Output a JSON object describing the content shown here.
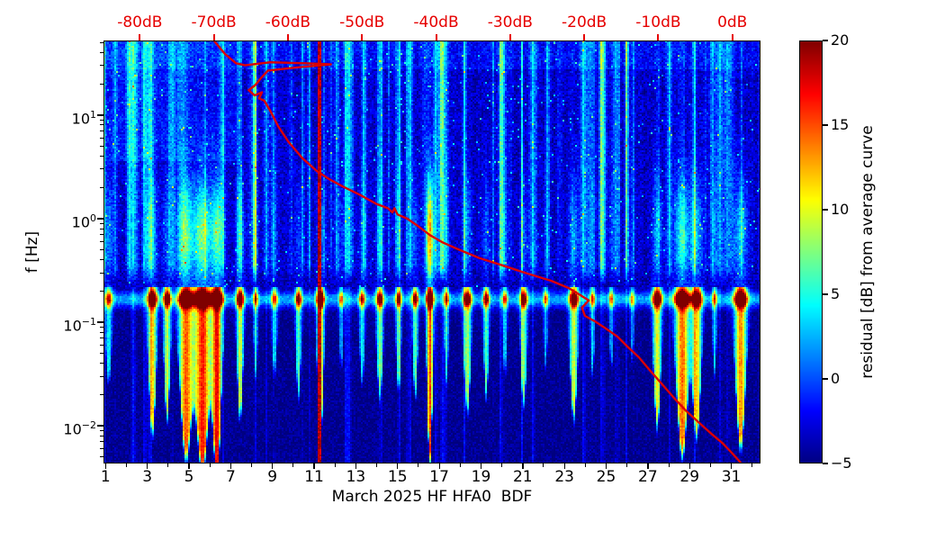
{
  "figure": {
    "background": "#ffffff",
    "frame_color": "#000000",
    "top_axis_color": "#e60000",
    "curve_color": "#dd0000",
    "colormap": "jet"
  },
  "chart_data": {
    "type": "heatmap",
    "subtype": "spectrogram",
    "title": "",
    "xlabel": "March 2025 HF HFA0  BDF",
    "ylabel": "f [Hz]",
    "x_axis": {
      "unit": "day",
      "range": [
        0.9,
        32.4
      ],
      "major_ticks": [
        1,
        3,
        5,
        7,
        9,
        11,
        13,
        15,
        17,
        19,
        21,
        23,
        25,
        27,
        29,
        31
      ],
      "major_tick_labels": [
        "1",
        "3",
        "5",
        "7",
        "9",
        "11",
        "13",
        "15",
        "17",
        "19",
        "21",
        "23",
        "25",
        "27",
        "29",
        "31"
      ],
      "minor_ticks_every": 1
    },
    "y_axis": {
      "scale": "log",
      "range_hz": [
        0.0043,
        52.5
      ],
      "log_range": [
        -2.365,
        1.72
      ],
      "major_tick_exponents": [
        1,
        0,
        -1,
        -2
      ]
    },
    "top_axis": {
      "unit": "dB",
      "range": [
        -84.9,
        3.8
      ],
      "ticks": [
        -80,
        -70,
        -60,
        -50,
        -40,
        -30,
        -20,
        -10,
        0
      ],
      "tick_labels": [
        "-80dB",
        "-70dB",
        "-60dB",
        "-50dB",
        "-40dB",
        "-30dB",
        "-20dB",
        "-10dB",
        "0dB"
      ]
    },
    "colorbar": {
      "label": "residual [dB] from average curve",
      "range": [
        -5,
        20
      ],
      "ticks": [
        20,
        15,
        10,
        5,
        0,
        -5
      ],
      "tick_labels": [
        "20",
        "15",
        "10",
        "5",
        "0",
        "−5"
      ]
    },
    "overlay_curve": {
      "name": "average-spectrum-curve",
      "x_unit": "dB",
      "y_unit": "log10_f_hz",
      "points": [
        [
          -70.0,
          1.72
        ],
        [
          -68.5,
          1.59
        ],
        [
          -67.0,
          1.5
        ],
        [
          -65.8,
          1.48
        ],
        [
          -62.4,
          1.51
        ],
        [
          -57.6,
          1.5
        ],
        [
          -54.2,
          1.49
        ],
        [
          -58.8,
          1.46
        ],
        [
          -62.7,
          1.43
        ],
        [
          -63.6,
          1.36
        ],
        [
          -64.4,
          1.29
        ],
        [
          -65.3,
          1.24
        ],
        [
          -64.5,
          1.19
        ],
        [
          -63.5,
          1.22
        ],
        [
          -63.9,
          1.16
        ],
        [
          -63.2,
          1.14
        ],
        [
          -62.3,
          1.03
        ],
        [
          -61.3,
          0.89
        ],
        [
          -59.9,
          0.74
        ],
        [
          -58.0,
          0.58
        ],
        [
          -56.1,
          0.46
        ],
        [
          -54.4,
          0.38
        ],
        [
          -52.6,
          0.31
        ],
        [
          -50.3,
          0.23
        ],
        [
          -48.0,
          0.14
        ],
        [
          -46.5,
          0.1
        ],
        [
          -45.9,
          0.06
        ],
        [
          -45.6,
          0.1
        ],
        [
          -45.2,
          0.04
        ],
        [
          -43.9,
          0.0
        ],
        [
          -42.5,
          -0.07
        ],
        [
          -40.8,
          -0.16
        ],
        [
          -39.1,
          -0.23
        ],
        [
          -36.9,
          -0.3
        ],
        [
          -34.2,
          -0.38
        ],
        [
          -31.1,
          -0.45
        ],
        [
          -27.7,
          -0.53
        ],
        [
          -24.5,
          -0.6
        ],
        [
          -22.1,
          -0.67
        ],
        [
          -20.5,
          -0.74
        ],
        [
          -19.4,
          -0.79
        ],
        [
          -20.3,
          -0.86
        ],
        [
          -19.9,
          -0.94
        ],
        [
          -18.6,
          -0.99
        ],
        [
          -17.1,
          -1.06
        ],
        [
          -15.5,
          -1.14
        ],
        [
          -14.1,
          -1.24
        ],
        [
          -12.6,
          -1.34
        ],
        [
          -11.2,
          -1.46
        ],
        [
          -9.6,
          -1.59
        ],
        [
          -7.9,
          -1.73
        ],
        [
          -6.2,
          -1.86
        ],
        [
          -4.5,
          -1.97
        ],
        [
          -2.8,
          -2.08
        ],
        [
          -1.3,
          -2.17
        ],
        [
          -0.1,
          -2.26
        ],
        [
          0.8,
          -2.33
        ],
        [
          1.2,
          -2.37
        ]
      ]
    },
    "spectrogram_spec": {
      "seed": 12345,
      "base_residual_db": -4.2,
      "band_center_log10f": -0.78,
      "storms": [
        [
          1.15,
          0.18,
          9,
          0.5
        ],
        [
          3.25,
          0.22,
          16,
          0.3
        ],
        [
          3.95,
          0.18,
          14,
          0.25
        ],
        [
          4.85,
          0.35,
          19,
          0.45
        ],
        [
          5.65,
          0.4,
          21,
          0.5
        ],
        [
          6.35,
          0.25,
          21,
          0.45
        ],
        [
          7.45,
          0.18,
          14,
          0.45
        ],
        [
          8.2,
          0.12,
          8,
          0.35
        ],
        [
          9.1,
          0.15,
          8,
          0.3
        ],
        [
          10.25,
          0.15,
          11,
          0.25
        ],
        [
          11.3,
          0.18,
          17,
          0.25
        ],
        [
          12.3,
          0.12,
          7,
          0.3
        ],
        [
          13.3,
          0.15,
          9,
          0.3
        ],
        [
          14.15,
          0.18,
          11,
          0.3
        ],
        [
          15.05,
          0.15,
          10,
          0.3
        ],
        [
          15.85,
          0.15,
          11,
          0.3
        ],
        [
          16.55,
          0.16,
          20,
          0.75
        ],
        [
          17.35,
          0.12,
          9,
          0.3
        ],
        [
          18.35,
          0.2,
          13,
          0.3
        ],
        [
          19.25,
          0.15,
          11,
          0.3
        ],
        [
          20.15,
          0.12,
          8,
          0.25
        ],
        [
          21.05,
          0.18,
          12,
          0.3
        ],
        [
          22.1,
          0.12,
          7,
          0.25
        ],
        [
          23.45,
          0.22,
          14,
          0.35
        ],
        [
          24.35,
          0.12,
          8,
          0.25
        ],
        [
          25.25,
          0.12,
          7,
          0.25
        ],
        [
          26.25,
          0.12,
          6,
          0.2
        ],
        [
          27.45,
          0.22,
          15,
          0.35
        ],
        [
          28.65,
          0.35,
          19,
          0.4
        ],
        [
          29.35,
          0.25,
          16,
          0.35
        ],
        [
          30.2,
          0.12,
          8,
          0.25
        ],
        [
          31.45,
          0.3,
          18,
          0.35
        ]
      ],
      "full_column": {
        "day": 11.28,
        "halfwidth": 0.1
      },
      "upper_boosts": [
        [
          2.1,
          0.12,
          5
        ],
        [
          8.15,
          0.1,
          6
        ],
        [
          12.1,
          0.1,
          5
        ],
        [
          13.4,
          0.12,
          5
        ],
        [
          17.1,
          0.1,
          5
        ],
        [
          20.0,
          0.12,
          4
        ],
        [
          22.2,
          0.1,
          4
        ],
        [
          24.8,
          0.12,
          5
        ],
        [
          26.0,
          0.1,
          4
        ],
        [
          30.1,
          0.12,
          5
        ]
      ]
    }
  }
}
